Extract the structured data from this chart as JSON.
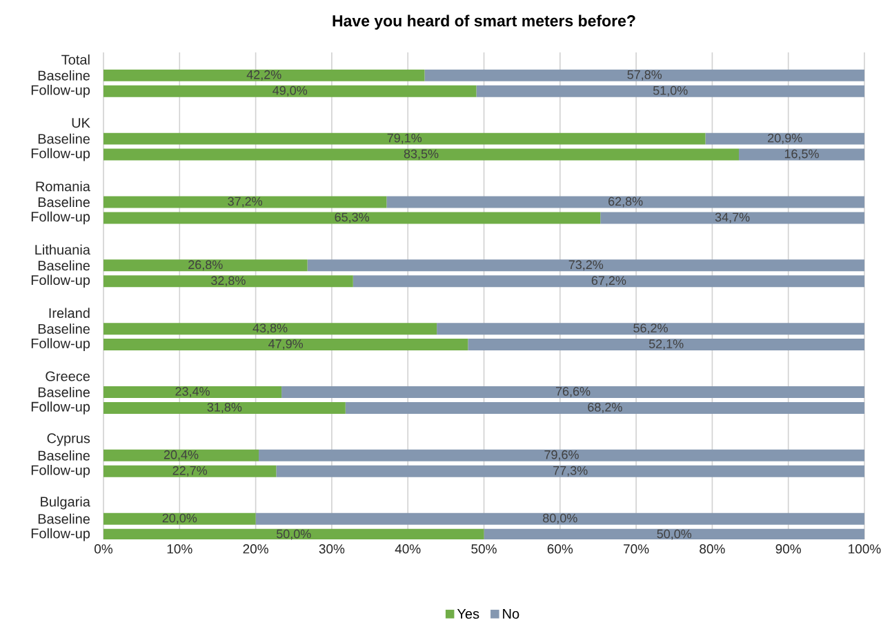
{
  "chart_data": {
    "type": "bar",
    "orientation": "horizontal",
    "stacked": true,
    "title": "Have you heard of smart meters before?",
    "categories": [
      "Total",
      "Baseline",
      "Follow-up",
      null,
      "UK",
      "Baseline",
      "Follow-up",
      null,
      "Romania",
      "Baseline",
      "Follow-up",
      null,
      "Lithuania",
      "Baseline",
      "Follow-up",
      null,
      "Ireland",
      "Baseline",
      "Follow-up",
      null,
      "Greece",
      "Baseline",
      "Follow-up",
      null,
      "Cyprus",
      "Baseline",
      "Follow-up",
      null,
      "Bulgaria",
      "Baseline",
      "Follow-up"
    ],
    "series": [
      {
        "name": "Yes",
        "color": "#70ad47",
        "values": [
          null,
          42.2,
          49.0,
          null,
          null,
          79.1,
          83.5,
          null,
          null,
          37.2,
          65.3,
          null,
          null,
          26.8,
          32.8,
          null,
          null,
          43.8,
          47.9,
          null,
          null,
          23.4,
          31.8,
          null,
          null,
          20.4,
          22.7,
          null,
          null,
          20.0,
          50.0
        ],
        "value_labels": [
          null,
          "42,2%",
          "49,0%",
          null,
          null,
          "79,1%",
          "83,5%",
          null,
          null,
          "37,2%",
          "65,3%",
          null,
          null,
          "26,8%",
          "32,8%",
          null,
          null,
          "43,8%",
          "47,9%",
          null,
          null,
          "23,4%",
          "31,8%",
          null,
          null,
          "20,4%",
          "22,7%",
          null,
          null,
          "20,0%",
          "50,0%"
        ]
      },
      {
        "name": "No",
        "color": "#8497b0",
        "values": [
          null,
          57.8,
          51.0,
          null,
          null,
          20.9,
          16.5,
          null,
          null,
          62.8,
          34.7,
          null,
          null,
          73.2,
          67.2,
          null,
          null,
          56.2,
          52.1,
          null,
          null,
          76.6,
          68.2,
          null,
          null,
          79.6,
          77.3,
          null,
          null,
          80.0,
          50.0
        ],
        "value_labels": [
          null,
          "57,8%",
          "51,0%",
          null,
          null,
          "20,9%",
          "16,5%",
          null,
          null,
          "62,8%",
          "34,7%",
          null,
          null,
          "73,2%",
          "67,2%",
          null,
          null,
          "56,2%",
          "52,1%",
          null,
          null,
          "76,6%",
          "68,2%",
          null,
          null,
          "79,6%",
          "77,3%",
          null,
          null,
          "80,0%",
          "50,0%"
        ]
      }
    ],
    "xlim": [
      0,
      100
    ],
    "xticks": [
      {
        "value": 0,
        "label": "0%"
      },
      {
        "value": 10,
        "label": "10%"
      },
      {
        "value": 20,
        "label": "20%"
      },
      {
        "value": 30,
        "label": "30%"
      },
      {
        "value": 40,
        "label": "40%"
      },
      {
        "value": 50,
        "label": "50%"
      },
      {
        "value": 60,
        "label": "60%"
      },
      {
        "value": 70,
        "label": "70%"
      },
      {
        "value": 80,
        "label": "80%"
      },
      {
        "value": 90,
        "label": "90%"
      },
      {
        "value": 100,
        "label": "100%"
      }
    ],
    "grid": "x",
    "legend": "bottom"
  }
}
